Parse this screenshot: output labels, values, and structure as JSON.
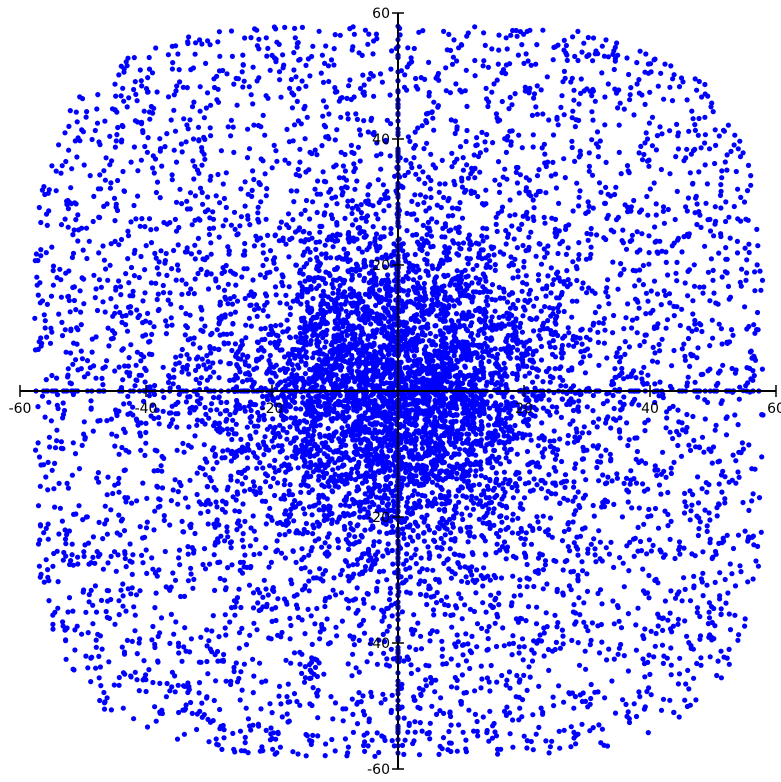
{
  "chart_data": {
    "type": "scatter",
    "title": "",
    "xlabel": "",
    "ylabel": "",
    "xlim": [
      -60,
      60
    ],
    "ylim": [
      -60,
      60
    ],
    "grid": false,
    "legend": "none",
    "axes_style": "centered-crosshair",
    "point_color": "#0000ff",
    "axis_color": "#000000",
    "x_ticks": [
      {
        "value": -60,
        "label": "-60"
      },
      {
        "value": -40,
        "label": "-40"
      },
      {
        "value": -20,
        "label": "-20"
      },
      {
        "value": 20,
        "label": "20"
      },
      {
        "value": 40,
        "label": "40"
      },
      {
        "value": 60,
        "label": "60"
      }
    ],
    "y_ticks": [
      {
        "value": 60,
        "label": "60"
      },
      {
        "value": 40,
        "label": "40"
      },
      {
        "value": 20,
        "label": "20"
      },
      {
        "value": -20,
        "label": "-20"
      },
      {
        "value": -40,
        "label": "-40"
      },
      {
        "value": -60,
        "label": "-60"
      }
    ],
    "series": [
      {
        "distribution": "two-dimensional cloud centred at the origin, densest at (0, 0), thinning outward; square-ish outline reaching about ±58",
        "approx_point_count": 9000,
        "x_range": [
          -58,
          58
        ],
        "y_range": [
          -58,
          58
        ],
        "dense_core_radius": 22,
        "axis_aligned_points": "many points lie exactly on the x = 0 and y = 0 axes",
        "values_sample": [
          [
            0,
            0
          ],
          [
            5,
            8
          ],
          [
            -10,
            4
          ],
          [
            12,
            -6
          ],
          [
            -3,
            -15
          ],
          [
            18,
            12
          ],
          [
            -22,
            -9
          ],
          [
            30,
            25
          ],
          [
            -35,
            20
          ],
          [
            42,
            -38
          ],
          [
            -48,
            -44
          ],
          [
            55,
            30
          ],
          [
            -56,
            10
          ],
          [
            20,
            52
          ],
          [
            -25,
            -54
          ],
          [
            0,
            45
          ],
          [
            0,
            -50
          ],
          [
            38,
            0
          ],
          [
            -42,
            0
          ]
        ]
      }
    ]
  }
}
